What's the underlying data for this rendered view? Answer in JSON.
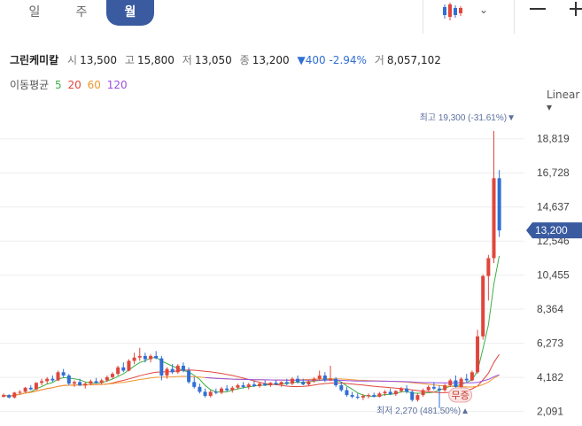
{
  "tabs": [
    {
      "label": "일"
    },
    {
      "label": "주"
    },
    {
      "label": "월"
    }
  ],
  "active_tab": 2,
  "toolbar": {
    "chart_type_icon": "candlestick-icon",
    "dropdown_icon": "chevron-down-icon",
    "minus_icon": "minus-icon",
    "plus_icon": "plus-icon"
  },
  "stock": {
    "name": "그린케미칼",
    "open_label": "시",
    "open": "13,500",
    "high_label": "고",
    "high": "15,800",
    "low_label": "저",
    "low": "13,050",
    "close_label": "종",
    "close": "13,200",
    "change": "▼400 -2.94%",
    "volume_label": "거",
    "volume": "8,057,102"
  },
  "moving_average": {
    "label": "이동평균",
    "periods": [
      {
        "label": "5",
        "color": "#3cb043"
      },
      {
        "label": "20",
        "color": "#e0463c"
      },
      {
        "label": "60",
        "color": "#f0962e"
      },
      {
        "label": "120",
        "color": "#9b4fe0"
      }
    ]
  },
  "scale_label": "Linear",
  "colors": {
    "up": "#e0463c",
    "down": "#2f6fd6",
    "price_tag": "#3a5ba0"
  },
  "chart_data": {
    "type": "candlestick",
    "y_ticks": [
      18819,
      16728,
      14637,
      12546,
      10455,
      8364,
      6273,
      4182,
      2091
    ],
    "y_tick_labels": [
      "18,819",
      "16,728",
      "14,637",
      "12,546",
      "10,455",
      "8,364",
      "6,273",
      "4,182",
      "2,091"
    ],
    "ylim": [
      1800,
      20000
    ],
    "current_price": {
      "value": 13200,
      "label": "13,200"
    },
    "max_annotation": {
      "value": 19300,
      "label": "최고 19,300 (-31.61%)▼"
    },
    "min_annotation": {
      "value": 2270,
      "label": "최저 2,270 (481.50%)▲"
    },
    "event_marker": {
      "label": "무증",
      "index": 84
    },
    "candles": [
      [
        3000,
        3200,
        2950,
        3100
      ],
      [
        3100,
        3150,
        2900,
        2950
      ],
      [
        2950,
        3300,
        2900,
        3250
      ],
      [
        3250,
        3400,
        3150,
        3300
      ],
      [
        3300,
        3600,
        3250,
        3550
      ],
      [
        3550,
        3700,
        3400,
        3450
      ],
      [
        3450,
        3900,
        3400,
        3850
      ],
      [
        3850,
        4100,
        3700,
        3950
      ],
      [
        3950,
        4200,
        3800,
        4100
      ],
      [
        4100,
        4300,
        3900,
        4000
      ],
      [
        4000,
        4600,
        3950,
        4500
      ],
      [
        4500,
        4700,
        4200,
        4300
      ],
      [
        4300,
        4400,
        3700,
        3800
      ],
      [
        3800,
        4000,
        3600,
        3900
      ],
      [
        3900,
        4100,
        3650,
        3700
      ],
      [
        3700,
        3900,
        3500,
        3800
      ],
      [
        3800,
        4050,
        3700,
        3950
      ],
      [
        3950,
        4150,
        3800,
        3850
      ],
      [
        3850,
        4100,
        3750,
        4000
      ],
      [
        4000,
        4300,
        3900,
        4200
      ],
      [
        4200,
        4500,
        4100,
        4400
      ],
      [
        4400,
        4900,
        4300,
        4800
      ],
      [
        4800,
        5100,
        4500,
        4600
      ],
      [
        4600,
        5300,
        4550,
        5200
      ],
      [
        5200,
        5700,
        5000,
        5400
      ],
      [
        5400,
        6000,
        5200,
        5500
      ],
      [
        5500,
        5700,
        5100,
        5300
      ],
      [
        5300,
        5600,
        5100,
        5500
      ],
      [
        5500,
        5800,
        5300,
        5350
      ],
      [
        5350,
        5500,
        4000,
        4300
      ],
      [
        4300,
        4800,
        4100,
        4700
      ],
      [
        4700,
        5000,
        4400,
        4500
      ],
      [
        4500,
        5000,
        4400,
        4900
      ],
      [
        4900,
        5100,
        4500,
        4600
      ],
      [
        4600,
        4800,
        3800,
        3900
      ],
      [
        3900,
        4200,
        3500,
        3600
      ],
      [
        3600,
        3800,
        3200,
        3300
      ],
      [
        3300,
        3500,
        2950,
        3050
      ],
      [
        3050,
        3400,
        2950,
        3300
      ],
      [
        3300,
        3500,
        3150,
        3250
      ],
      [
        3250,
        3600,
        3150,
        3500
      ],
      [
        3500,
        3700,
        3300,
        3400
      ],
      [
        3400,
        3650,
        3250,
        3550
      ],
      [
        3550,
        3800,
        3450,
        3700
      ],
      [
        3700,
        3900,
        3500,
        3600
      ],
      [
        3600,
        3850,
        3450,
        3750
      ],
      [
        3750,
        3950,
        3600,
        3650
      ],
      [
        3650,
        3900,
        3550,
        3800
      ],
      [
        3800,
        4000,
        3650,
        3700
      ],
      [
        3700,
        3900,
        3600,
        3850
      ],
      [
        3850,
        4000,
        3700,
        3750
      ],
      [
        3750,
        3950,
        3600,
        3900
      ],
      [
        3900,
        4100,
        3700,
        3800
      ],
      [
        3800,
        4200,
        3700,
        4100
      ],
      [
        4100,
        4300,
        3800,
        3900
      ],
      [
        3900,
        4100,
        3700,
        3750
      ],
      [
        3750,
        4000,
        3650,
        3950
      ],
      [
        3950,
        4200,
        3850,
        4100
      ],
      [
        4100,
        4600,
        4000,
        4300
      ],
      [
        4300,
        4500,
        3900,
        4000
      ],
      [
        4000,
        4900,
        3950,
        4100
      ],
      [
        4100,
        4200,
        3600,
        3700
      ],
      [
        3700,
        3900,
        3300,
        3400
      ],
      [
        3400,
        3600,
        3000,
        3100
      ],
      [
        3100,
        3300,
        2900,
        3000
      ],
      [
        3000,
        3200,
        2850,
        2950
      ],
      [
        2950,
        3150,
        2800,
        3050
      ],
      [
        3050,
        3200,
        2900,
        3100
      ],
      [
        3100,
        3250,
        2950,
        3000
      ],
      [
        3000,
        3300,
        2950,
        3200
      ],
      [
        3200,
        3400,
        3050,
        3300
      ],
      [
        3300,
        3500,
        3100,
        3150
      ],
      [
        3150,
        3400,
        3050,
        3350
      ],
      [
        3350,
        3600,
        3250,
        3500
      ],
      [
        3500,
        3700,
        3200,
        3300
      ],
      [
        3300,
        3400,
        2700,
        2800
      ],
      [
        2800,
        3200,
        2700,
        3100
      ],
      [
        3100,
        3500,
        3000,
        3400
      ],
      [
        3400,
        3700,
        3300,
        3600
      ],
      [
        3600,
        3900,
        3400,
        3500
      ],
      [
        3500,
        3700,
        2300,
        3400
      ],
      [
        3400,
        3800,
        3300,
        3700
      ],
      [
        3700,
        4100,
        3600,
        4000
      ],
      [
        4000,
        4300,
        3500,
        3600
      ],
      [
        3600,
        4200,
        3550,
        4100
      ],
      [
        4100,
        4400,
        3900,
        4000
      ],
      [
        4000,
        4600,
        3950,
        4500
      ],
      [
        4500,
        7100,
        4400,
        6700
      ],
      [
        6700,
        10500,
        6500,
        10400
      ],
      [
        10400,
        11700,
        8900,
        11500
      ],
      [
        11500,
        19300,
        11200,
        16400
      ],
      [
        16400,
        16900,
        12800,
        13200
      ]
    ]
  }
}
